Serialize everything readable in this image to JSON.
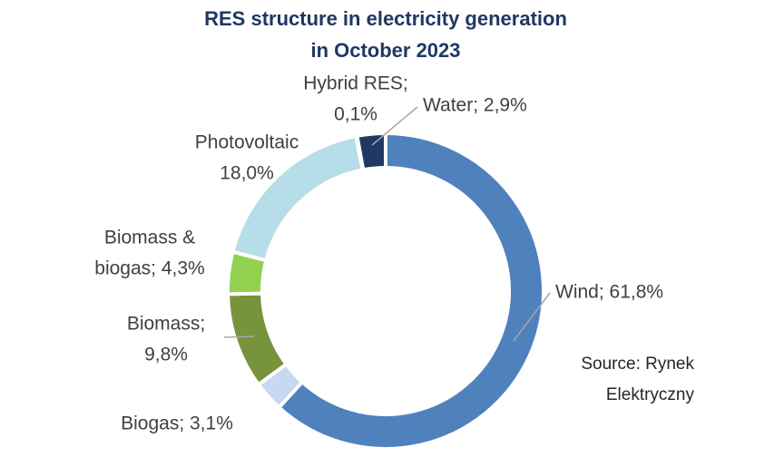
{
  "chart_data": {
    "type": "donut",
    "title": [
      "RES structure in electricity generation",
      "in October 2023"
    ],
    "values": [
      61.8,
      3.1,
      9.8,
      4.3,
      18.0,
      0.1,
      2.9
    ],
    "value_labels": [
      [
        "Wind; 61,8%"
      ],
      [
        "Biogas; 3,1%"
      ],
      [
        "Biomass;",
        "9,8%"
      ],
      [
        "Biomass &",
        "biogas; 4,3%"
      ],
      [
        "Photovoltaic",
        "18,0%"
      ],
      [
        "Hybrid RES;",
        "0,1%"
      ],
      [
        "Water; 2,9%"
      ]
    ],
    "colors": [
      "#4f81bd",
      "#c6d9f0",
      "#77933c",
      "#92d050",
      "#b7dde8",
      "#8eb4e3",
      "#1f3864"
    ],
    "source": [
      "Source: Rynek",
      "Elektryczny"
    ]
  }
}
